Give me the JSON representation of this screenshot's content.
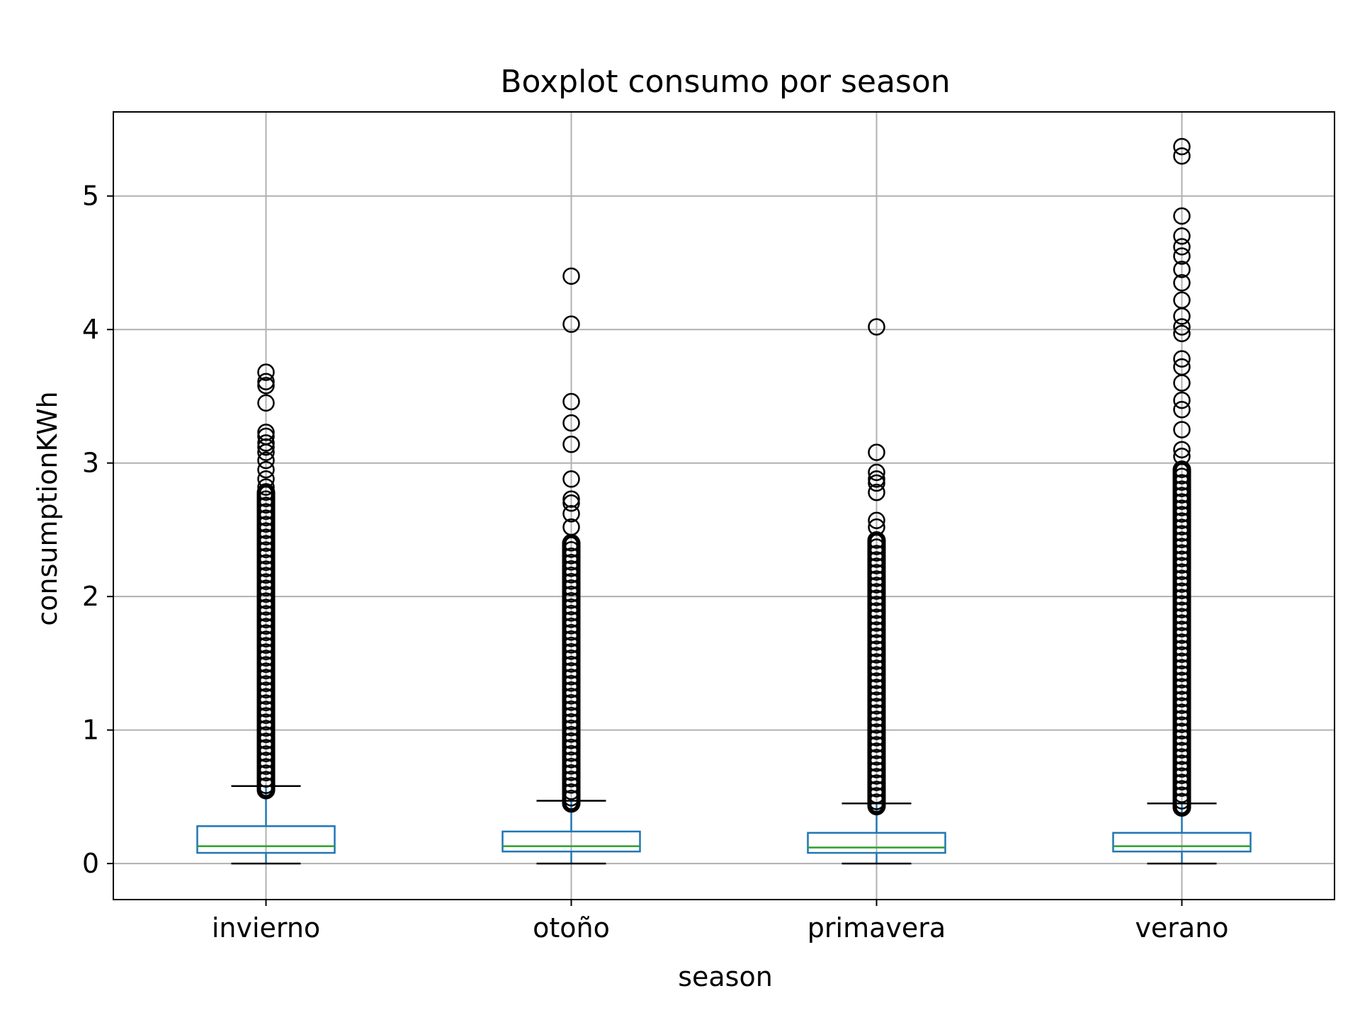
{
  "chart_data": {
    "type": "box",
    "title": "Boxplot consumo por season",
    "xlabel": "season",
    "ylabel": "consumptionKWh",
    "categories": [
      "invierno",
      "otoño",
      "primavera",
      "verano"
    ],
    "ylim": [
      -0.27,
      5.63
    ],
    "yticks": [
      0,
      1,
      2,
      3,
      4,
      5
    ],
    "grid": true,
    "colors": {
      "box": "#1f77b4",
      "median": "#2ca02c",
      "whisker_cap": "#000000",
      "flier": "#000000",
      "grid": "#b0b0b0",
      "axes": "#000000"
    },
    "boxes": [
      {
        "category": "invierno",
        "whisker_low": 0.0,
        "q1": 0.08,
        "median": 0.13,
        "q3": 0.28,
        "whisker_high": 0.58,
        "flier_dense_range": [
          0.55,
          2.78
        ],
        "fliers": [
          2.82,
          2.88,
          2.95,
          3.02,
          3.08,
          3.12,
          3.15,
          3.2,
          3.23,
          3.45,
          3.58,
          3.61,
          3.68
        ]
      },
      {
        "category": "otoño",
        "whisker_low": 0.0,
        "q1": 0.09,
        "median": 0.13,
        "q3": 0.24,
        "whisker_high": 0.47,
        "flier_dense_range": [
          0.45,
          2.4
        ],
        "fliers": [
          2.52,
          2.62,
          2.7,
          2.73,
          2.88,
          3.14,
          3.3,
          3.46,
          4.04,
          4.4
        ]
      },
      {
        "category": "primavera",
        "whisker_low": 0.0,
        "q1": 0.08,
        "median": 0.12,
        "q3": 0.23,
        "whisker_high": 0.45,
        "flier_dense_range": [
          0.43,
          2.42
        ],
        "fliers": [
          2.52,
          2.57,
          2.78,
          2.85,
          2.88,
          2.93,
          3.08,
          4.02
        ]
      },
      {
        "category": "verano",
        "whisker_low": 0.0,
        "q1": 0.09,
        "median": 0.13,
        "q3": 0.23,
        "whisker_high": 0.45,
        "flier_dense_range": [
          0.42,
          2.95
        ],
        "fliers": [
          3.05,
          3.1,
          3.25,
          3.4,
          3.47,
          3.6,
          3.72,
          3.78,
          3.97,
          4.02,
          4.1,
          4.22,
          4.35,
          4.45,
          4.55,
          4.62,
          4.7,
          4.85,
          5.3,
          5.37
        ]
      }
    ]
  }
}
